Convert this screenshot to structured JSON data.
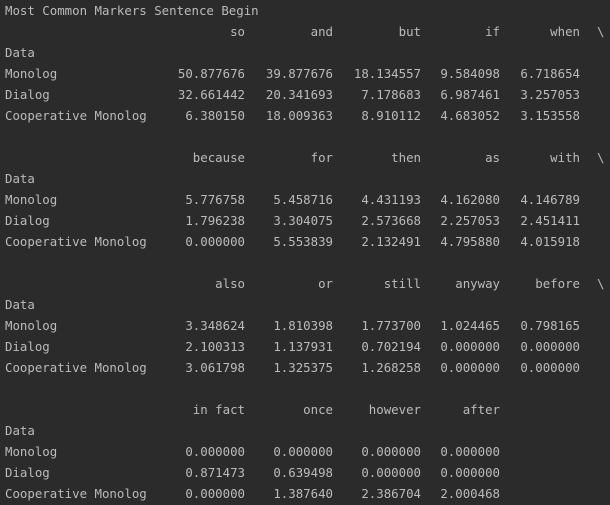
{
  "title": "Most Common Markers Sentence Begin",
  "index_name": "Data",
  "continuation": "\\",
  "rows": [
    "Monolog",
    "Dialog",
    "Cooperative Monolog"
  ],
  "blocks": [
    {
      "columns": [
        "so",
        "and",
        "but",
        "if",
        "when"
      ],
      "values": [
        [
          "50.877676",
          "39.877676",
          "18.134557",
          "9.584098",
          "6.718654"
        ],
        [
          "32.661442",
          "20.341693",
          "7.178683",
          "6.987461",
          "3.257053"
        ],
        [
          "6.380150",
          "18.009363",
          "8.910112",
          "4.683052",
          "3.153558"
        ]
      ],
      "continued": true
    },
    {
      "columns": [
        "because",
        "for",
        "then",
        "as",
        "with"
      ],
      "values": [
        [
          "5.776758",
          "5.458716",
          "4.431193",
          "4.162080",
          "4.146789"
        ],
        [
          "1.796238",
          "3.304075",
          "2.573668",
          "2.257053",
          "2.451411"
        ],
        [
          "0.000000",
          "5.553839",
          "2.132491",
          "4.795880",
          "4.015918"
        ]
      ],
      "continued": true
    },
    {
      "columns": [
        "also",
        "or",
        "still",
        "anyway",
        "before"
      ],
      "values": [
        [
          "3.348624",
          "1.810398",
          "1.773700",
          "1.024465",
          "0.798165"
        ],
        [
          "2.100313",
          "1.137931",
          "0.702194",
          "0.000000",
          "0.000000"
        ],
        [
          "3.061798",
          "1.325375",
          "1.268258",
          "0.000000",
          "0.000000"
        ]
      ],
      "continued": true
    },
    {
      "columns": [
        "in fact",
        "once",
        "however",
        "after"
      ],
      "values": [
        [
          "0.000000",
          "0.000000",
          "0.000000",
          "0.000000"
        ],
        [
          "0.871473",
          "0.639498",
          "0.000000",
          "0.000000"
        ],
        [
          "0.000000",
          "1.387640",
          "2.386704",
          "2.000468"
        ]
      ],
      "continued": false
    }
  ]
}
